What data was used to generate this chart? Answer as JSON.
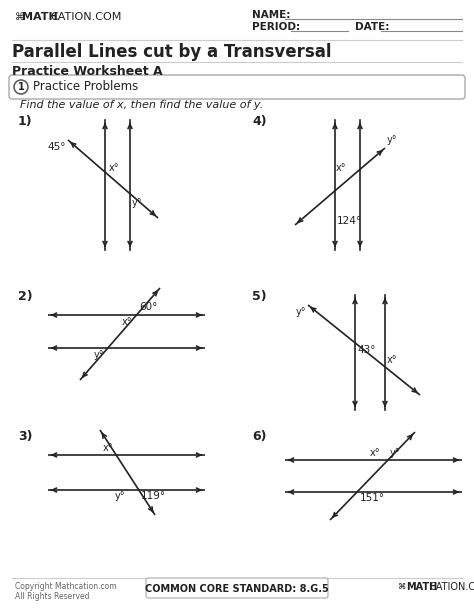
{
  "title": "Parallel Lines cut by a Transversal",
  "subtitle": "Practice Worksheet A",
  "section_text": "Practice Problems",
  "instruction": "Find the value of x, then find the value of y.",
  "problems": [
    {
      "num": "1)",
      "angle": "45°",
      "xvar": "x°",
      "yvar": "y°"
    },
    {
      "num": "2)",
      "angle": "60°",
      "xvar": "x°",
      "yvar": "y°"
    },
    {
      "num": "3)",
      "angle": "119°",
      "xvar": "x°",
      "yvar": "y°"
    },
    {
      "num": "4)",
      "angle": "124°",
      "xvar": "x°",
      "yvar": "y°"
    },
    {
      "num": "5)",
      "angle": "43°",
      "xvar": "x°",
      "yvar": "y°"
    },
    {
      "num": "6)",
      "angle": "151°",
      "xvar": "x°",
      "yvar": "y°"
    }
  ],
  "footer_left": "Copyright Mathcation.com\nAll Rights Reserved",
  "footer_center": "COMMON CORE STANDARD: 8.G.5",
  "footer_right": "MATHCATION.COM",
  "bg_color": "#ffffff",
  "line_color": "#222222",
  "text_color": "#222222"
}
